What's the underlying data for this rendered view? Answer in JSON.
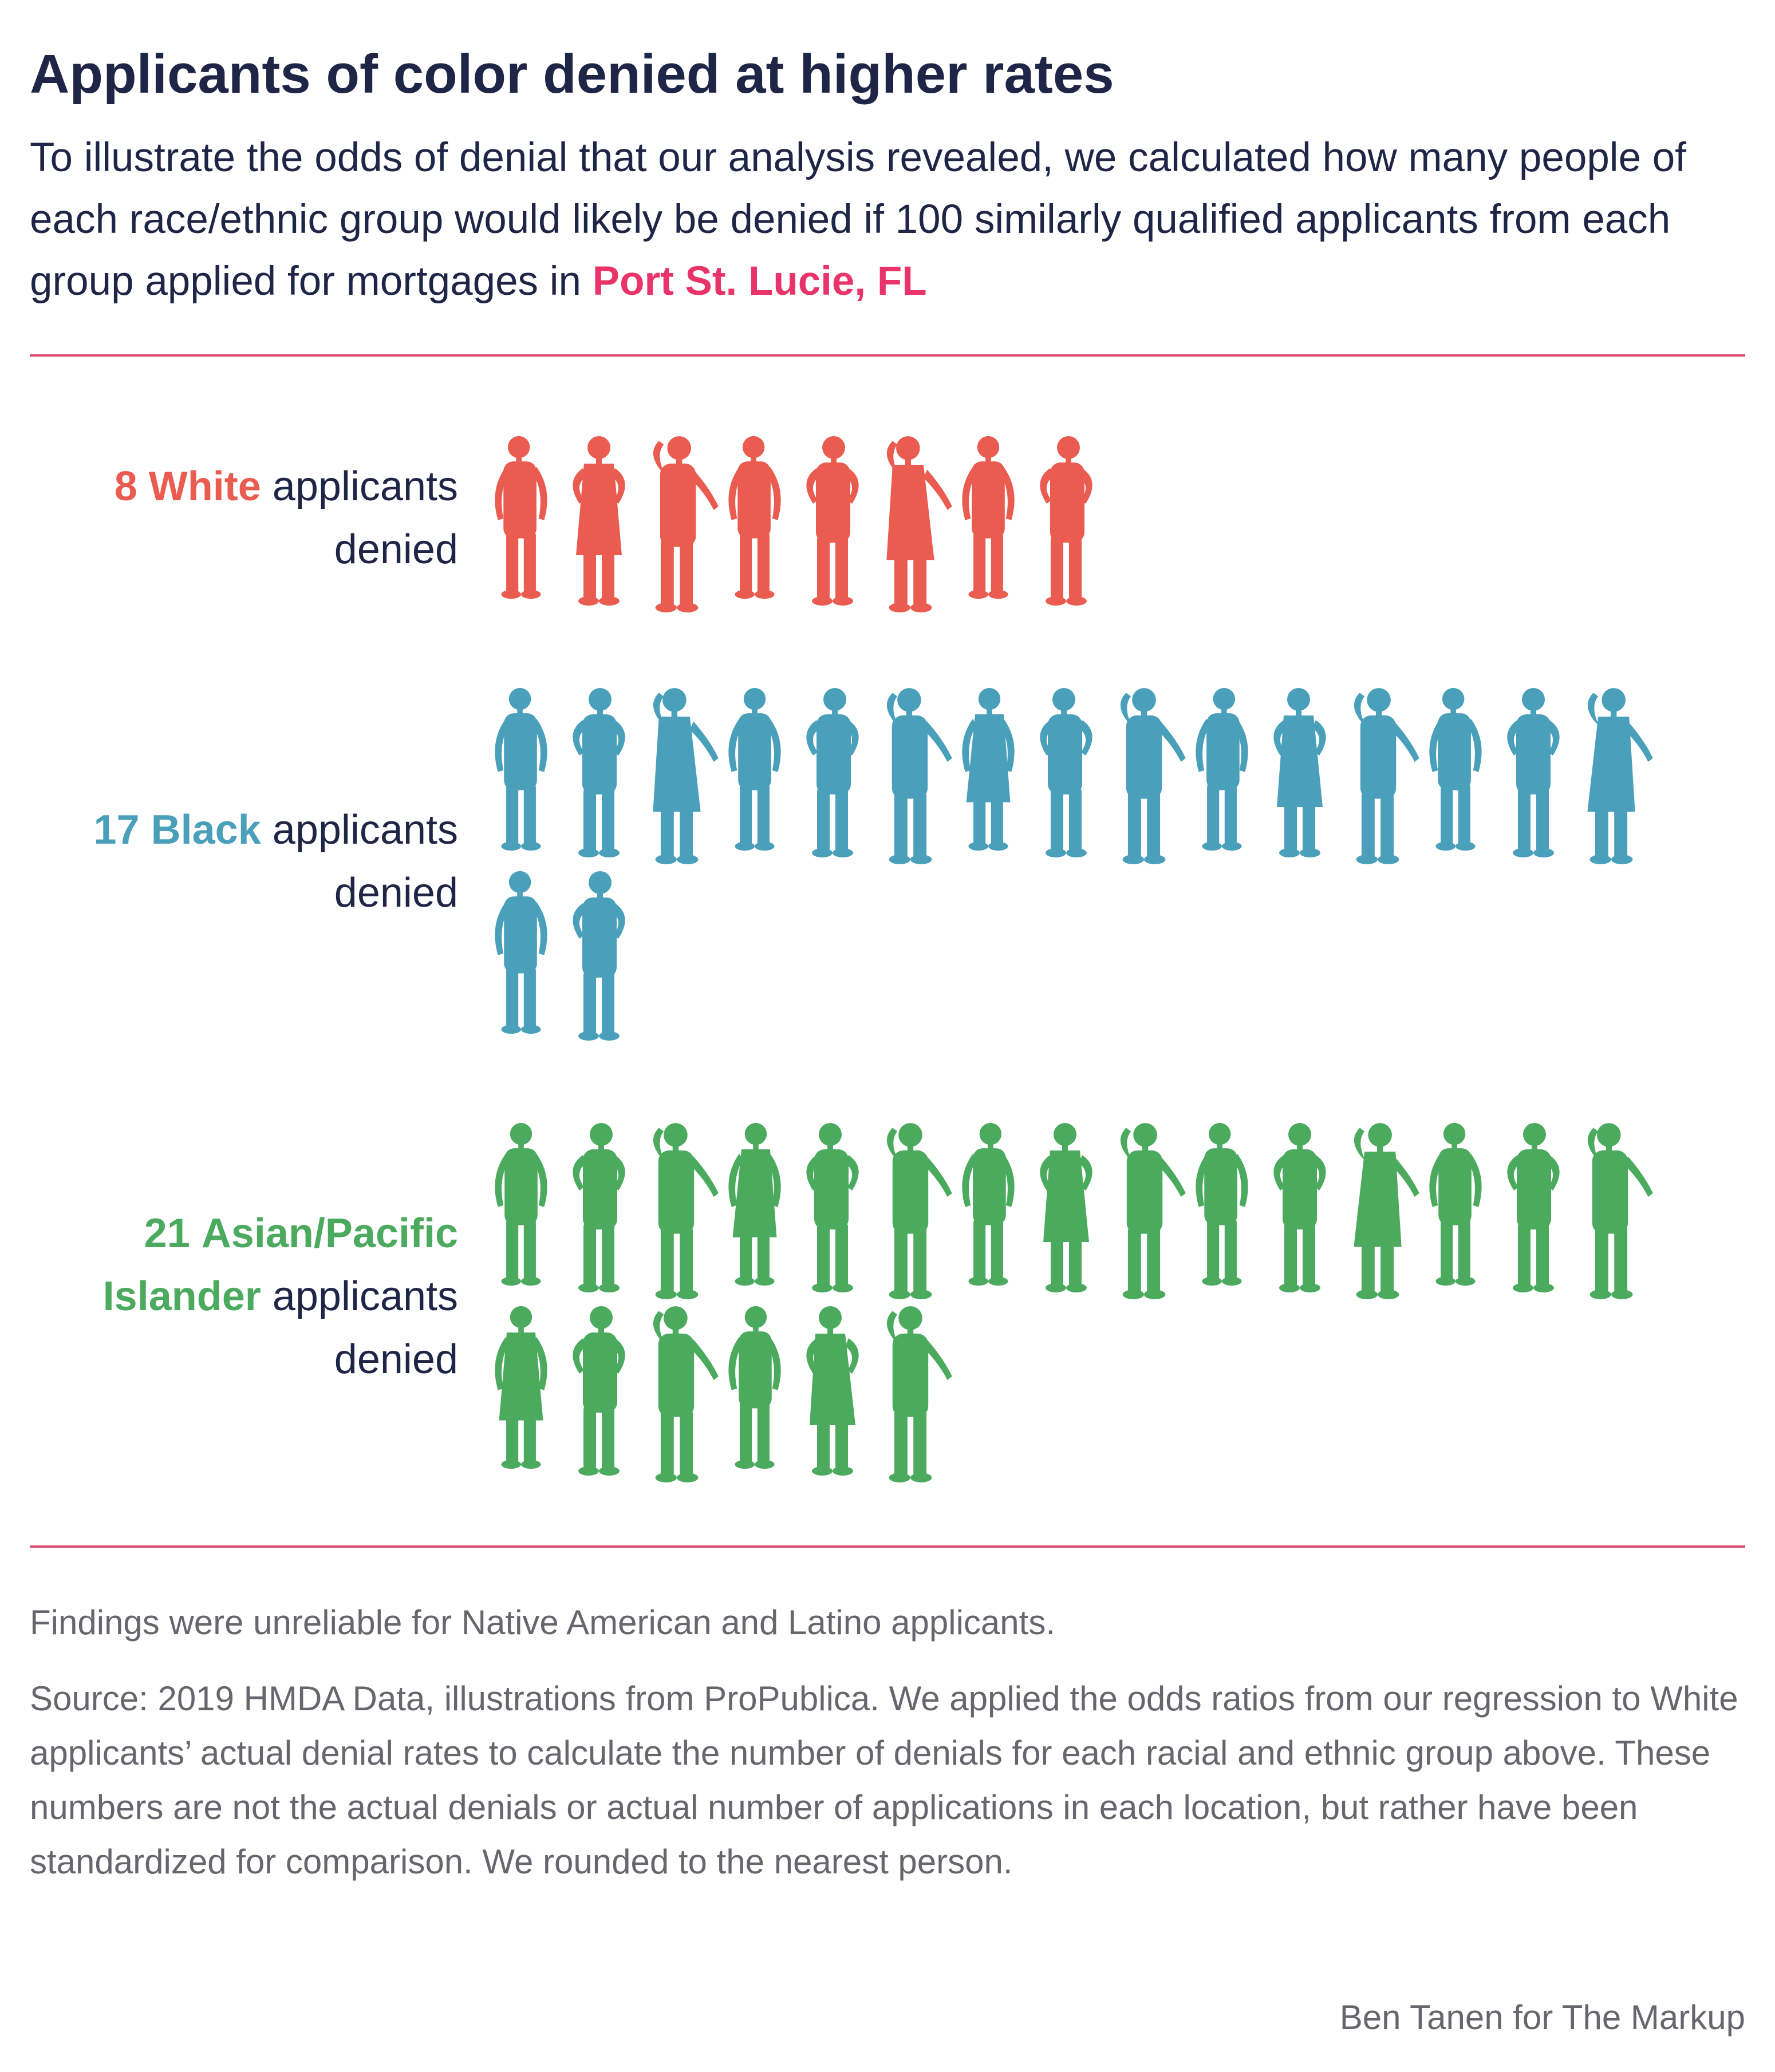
{
  "title": "Applicants of color denied at higher rates",
  "subtitle": {
    "text": "To illustrate the odds of denial that our analysis revealed, we calculated how many people of each race/ethnic group would likely be denied if 100 similarly qualified applicants from each group applied for mortgages in ",
    "location": "Port St. Lucie, FL"
  },
  "chart_data": {
    "type": "pictogram",
    "per_group_total": 100,
    "groups": [
      {
        "count": 8,
        "count_label": "8",
        "name": "White",
        "name_line2": "",
        "suffix": "applicants",
        "suffix2": "denied",
        "color": "#ea5b50",
        "icon": "person-silhouette-icon"
      },
      {
        "count": 17,
        "count_label": "17",
        "name": "Black",
        "name_line2": "",
        "suffix": "applicants",
        "suffix2": "denied",
        "color": "#4a9fba",
        "icon": "person-silhouette-icon"
      },
      {
        "count": 21,
        "count_label": "21",
        "name": "Asian/Pacific",
        "name_line2": "Islander",
        "suffix": "applicants",
        "suffix2": "denied",
        "color": "#4caa5f",
        "icon": "person-silhouette-icon"
      }
    ]
  },
  "footer": {
    "note": "Findings were unreliable for Native American and Latino applicants.",
    "source": "Source: 2019 HMDA Data, illustrations from ProPublica. We applied the odds ratios from our regression to White applicants’ actual denial rates to calculate the number of denials for each racial and ethnic group above. These numbers are not the actual denials or actual number of applications in each location, but rather have been standardized for comparison. We rounded to the nearest person.",
    "credit": "Ben Tanen for The Markup"
  },
  "accent_color": "#e8336b",
  "rule_color": "#d84d70"
}
